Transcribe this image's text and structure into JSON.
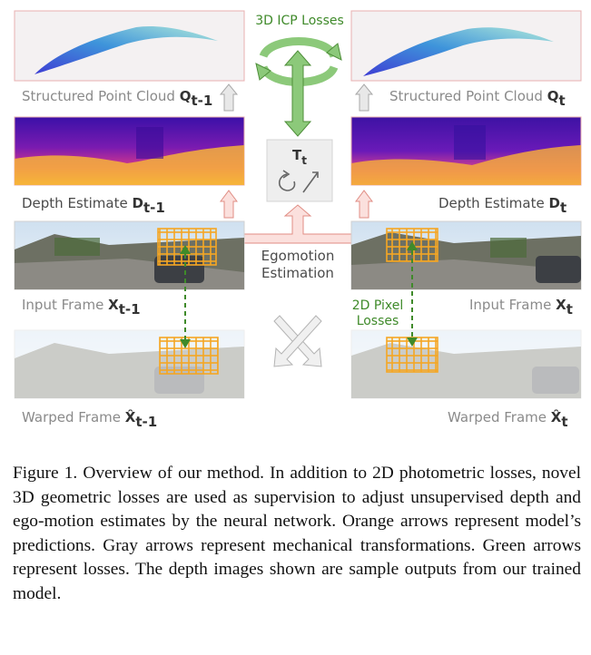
{
  "labels": {
    "icp_losses": "3D ICP Losses",
    "pc_left": "Structured Point Cloud",
    "pc_left_sym": "Q",
    "pc_left_sub": "t-1",
    "pc_right": "Structured Point Cloud",
    "pc_right_sym": "Q",
    "pc_right_sub": "t",
    "depth_left": "Depth Estimate",
    "depth_left_sym": "D",
    "depth_left_sub": "t-1",
    "depth_right": "Depth Estimate",
    "depth_right_sym": "D",
    "depth_right_sub": "t",
    "transform_sym": "T",
    "transform_sub": "t",
    "egomotion_line1": "Egomotion",
    "egomotion_line2": "Estimation",
    "input_left": "Input Frame",
    "input_left_sym": "X",
    "input_left_sub": "t-1",
    "input_right": "Input Frame",
    "input_right_sym": "X",
    "input_right_sub": "t",
    "pixel_losses_line1": "2D Pixel",
    "pixel_losses_line2": "Losses",
    "warped_left": "Warped Frame",
    "warped_left_sym": "X̂",
    "warped_left_sub": "t-1",
    "warped_right": "Warped Frame",
    "warped_right_sym": "X̂",
    "warped_right_sub": "t"
  },
  "caption": "Figure 1. Overview of our method. In addition to 2D photometric losses, novel 3D geometric losses are used as supervision to adjust unsupervised depth and ego-motion estimates by the neural network. Orange arrows represent model’s predictions. Gray arrows represent mechanical transformations. Green arrows represent losses. The depth images shown are sample outputs from our trained model.",
  "colors": {
    "prediction_arrow": "#f4a7a0",
    "mechanical_arrow": "#c8c8c8",
    "loss_arrow": "#8cc97a",
    "grid": "#f5a623"
  }
}
